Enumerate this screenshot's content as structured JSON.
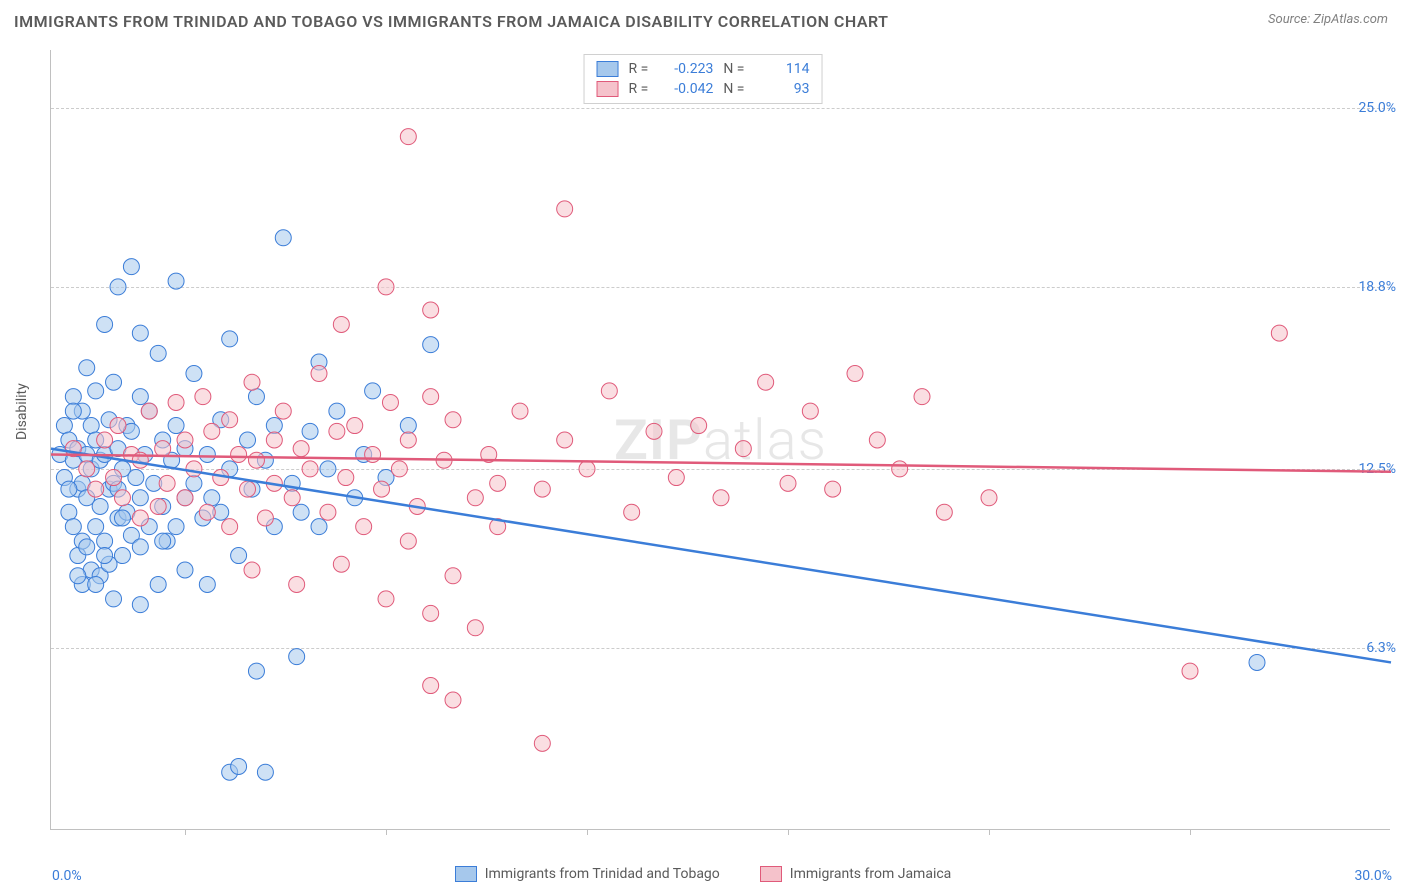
{
  "title": "IMMIGRANTS FROM TRINIDAD AND TOBAGO VS IMMIGRANTS FROM JAMAICA DISABILITY CORRELATION CHART",
  "source": "Source: ZipAtlas.com",
  "watermark_a": "ZIP",
  "watermark_b": "atlas",
  "ylabel": "Disability",
  "chart": {
    "type": "scatter",
    "xlim": [
      0,
      30
    ],
    "ylim": [
      0,
      27
    ],
    "xticks_label_left": "0.0%",
    "xticks_label_right": "30.0%",
    "xtick_positions_pct": [
      10,
      25,
      40,
      55,
      70,
      85
    ],
    "yticks": [
      {
        "v": 6.3,
        "label": "6.3%"
      },
      {
        "v": 12.5,
        "label": "12.5%"
      },
      {
        "v": 18.8,
        "label": "18.8%"
      },
      {
        "v": 25.0,
        "label": "25.0%"
      }
    ],
    "grid_color": "#cccccc",
    "background_color": "#ffffff",
    "series": [
      {
        "name": "Immigrants from Trinidad and Tobago",
        "fill": "#a6c8ec",
        "stroke": "#3b7dd8",
        "opacity": 0.55,
        "r_value": "-0.223",
        "n_value": "114",
        "line": {
          "x1": 0,
          "y1": 13.2,
          "x2": 30,
          "y2": 5.8
        },
        "points": [
          [
            0.2,
            13.0
          ],
          [
            0.3,
            12.2
          ],
          [
            0.3,
            14.0
          ],
          [
            0.4,
            11.0
          ],
          [
            0.4,
            13.5
          ],
          [
            0.5,
            10.5
          ],
          [
            0.5,
            12.8
          ],
          [
            0.5,
            15.0
          ],
          [
            0.6,
            9.5
          ],
          [
            0.6,
            11.8
          ],
          [
            0.6,
            13.2
          ],
          [
            0.7,
            8.5
          ],
          [
            0.7,
            10.0
          ],
          [
            0.7,
            12.0
          ],
          [
            0.7,
            14.5
          ],
          [
            0.8,
            11.5
          ],
          [
            0.8,
            13.0
          ],
          [
            0.8,
            16.0
          ],
          [
            0.9,
            9.0
          ],
          [
            0.9,
            12.5
          ],
          [
            0.9,
            14.0
          ],
          [
            1.0,
            10.5
          ],
          [
            1.0,
            13.5
          ],
          [
            1.0,
            15.2
          ],
          [
            1.1,
            8.8
          ],
          [
            1.1,
            11.2
          ],
          [
            1.1,
            12.8
          ],
          [
            1.2,
            10.0
          ],
          [
            1.2,
            13.0
          ],
          [
            1.2,
            17.5
          ],
          [
            1.3,
            9.2
          ],
          [
            1.3,
            11.8
          ],
          [
            1.3,
            14.2
          ],
          [
            1.4,
            12.0
          ],
          [
            1.4,
            15.5
          ],
          [
            1.5,
            10.8
          ],
          [
            1.5,
            13.2
          ],
          [
            1.5,
            18.8
          ],
          [
            1.6,
            9.5
          ],
          [
            1.6,
            12.5
          ],
          [
            1.7,
            11.0
          ],
          [
            1.7,
            14.0
          ],
          [
            1.8,
            10.2
          ],
          [
            1.8,
            13.8
          ],
          [
            1.8,
            19.5
          ],
          [
            1.9,
            12.2
          ],
          [
            2.0,
            9.8
          ],
          [
            2.0,
            11.5
          ],
          [
            2.0,
            15.0
          ],
          [
            2.1,
            13.0
          ],
          [
            2.2,
            10.5
          ],
          [
            2.2,
            14.5
          ],
          [
            2.3,
            12.0
          ],
          [
            2.4,
            16.5
          ],
          [
            2.5,
            11.2
          ],
          [
            2.5,
            13.5
          ],
          [
            2.6,
            10.0
          ],
          [
            2.7,
            12.8
          ],
          [
            2.8,
            14.0
          ],
          [
            2.8,
            19.0
          ],
          [
            3.0,
            11.5
          ],
          [
            3.0,
            13.2
          ],
          [
            3.2,
            12.0
          ],
          [
            3.2,
            15.8
          ],
          [
            3.4,
            10.8
          ],
          [
            3.5,
            13.0
          ],
          [
            3.6,
            11.5
          ],
          [
            3.8,
            14.2
          ],
          [
            4.0,
            12.5
          ],
          [
            4.0,
            17.0
          ],
          [
            4.2,
            9.5
          ],
          [
            4.4,
            13.5
          ],
          [
            4.5,
            11.8
          ],
          [
            4.6,
            15.0
          ],
          [
            4.8,
            12.8
          ],
          [
            5.0,
            10.5
          ],
          [
            5.0,
            14.0
          ],
          [
            5.2,
            20.5
          ],
          [
            5.4,
            12.0
          ],
          [
            5.6,
            11.0
          ],
          [
            5.8,
            13.8
          ],
          [
            6.0,
            16.2
          ],
          [
            6.2,
            12.5
          ],
          [
            6.4,
            14.5
          ],
          [
            6.8,
            11.5
          ],
          [
            7.0,
            13.0
          ],
          [
            7.2,
            15.2
          ],
          [
            7.5,
            12.2
          ],
          [
            8.0,
            14.0
          ],
          [
            8.5,
            16.8
          ],
          [
            4.0,
            2.0
          ],
          [
            4.2,
            2.2
          ],
          [
            4.8,
            2.0
          ],
          [
            4.6,
            5.5
          ],
          [
            2.0,
            17.2
          ],
          [
            2.4,
            8.5
          ],
          [
            3.0,
            9.0
          ],
          [
            1.4,
            8.0
          ],
          [
            1.0,
            8.5
          ],
          [
            1.2,
            9.5
          ],
          [
            0.8,
            9.8
          ],
          [
            0.6,
            8.8
          ],
          [
            2.0,
            7.8
          ],
          [
            2.8,
            10.5
          ],
          [
            1.6,
            10.8
          ],
          [
            3.5,
            8.5
          ],
          [
            0.5,
            14.5
          ],
          [
            1.5,
            11.8
          ],
          [
            0.4,
            11.8
          ],
          [
            2.5,
            10.0
          ],
          [
            3.8,
            11.0
          ],
          [
            6.0,
            10.5
          ],
          [
            5.5,
            6.0
          ],
          [
            27.0,
            5.8
          ]
        ]
      },
      {
        "name": "Immigrants from Jamaica",
        "fill": "#f5c2cb",
        "stroke": "#e05a7a",
        "opacity": 0.55,
        "r_value": "-0.042",
        "n_value": "93",
        "line": {
          "x1": 0,
          "y1": 13.0,
          "x2": 30,
          "y2": 12.4
        },
        "points": [
          [
            0.5,
            13.2
          ],
          [
            0.8,
            12.5
          ],
          [
            1.0,
            11.8
          ],
          [
            1.2,
            13.5
          ],
          [
            1.4,
            12.2
          ],
          [
            1.5,
            14.0
          ],
          [
            1.6,
            11.5
          ],
          [
            1.8,
            13.0
          ],
          [
            2.0,
            10.8
          ],
          [
            2.0,
            12.8
          ],
          [
            2.2,
            14.5
          ],
          [
            2.4,
            11.2
          ],
          [
            2.5,
            13.2
          ],
          [
            2.6,
            12.0
          ],
          [
            2.8,
            14.8
          ],
          [
            3.0,
            11.5
          ],
          [
            3.0,
            13.5
          ],
          [
            3.2,
            12.5
          ],
          [
            3.4,
            15.0
          ],
          [
            3.5,
            11.0
          ],
          [
            3.6,
            13.8
          ],
          [
            3.8,
            12.2
          ],
          [
            4.0,
            14.2
          ],
          [
            4.0,
            10.5
          ],
          [
            4.2,
            13.0
          ],
          [
            4.4,
            11.8
          ],
          [
            4.5,
            15.5
          ],
          [
            4.6,
            12.8
          ],
          [
            4.8,
            10.8
          ],
          [
            5.0,
            13.5
          ],
          [
            5.0,
            12.0
          ],
          [
            5.2,
            14.5
          ],
          [
            5.4,
            11.5
          ],
          [
            5.6,
            13.2
          ],
          [
            5.8,
            12.5
          ],
          [
            6.0,
            15.8
          ],
          [
            6.2,
            11.0
          ],
          [
            6.4,
            13.8
          ],
          [
            6.6,
            12.2
          ],
          [
            6.8,
            14.0
          ],
          [
            7.0,
            10.5
          ],
          [
            7.2,
            13.0
          ],
          [
            7.4,
            11.8
          ],
          [
            7.6,
            14.8
          ],
          [
            7.8,
            12.5
          ],
          [
            8.0,
            13.5
          ],
          [
            8.2,
            11.2
          ],
          [
            8.5,
            15.0
          ],
          [
            8.8,
            12.8
          ],
          [
            9.0,
            14.2
          ],
          [
            9.5,
            11.5
          ],
          [
            9.8,
            13.0
          ],
          [
            10.0,
            12.0
          ],
          [
            10.5,
            14.5
          ],
          [
            11.0,
            11.8
          ],
          [
            11.5,
            13.5
          ],
          [
            12.0,
            12.5
          ],
          [
            12.5,
            15.2
          ],
          [
            13.0,
            11.0
          ],
          [
            13.5,
            13.8
          ],
          [
            14.0,
            12.2
          ],
          [
            14.5,
            14.0
          ],
          [
            15.0,
            11.5
          ],
          [
            15.5,
            13.2
          ],
          [
            16.0,
            15.5
          ],
          [
            16.5,
            12.0
          ],
          [
            17.0,
            14.5
          ],
          [
            17.5,
            11.8
          ],
          [
            18.0,
            15.8
          ],
          [
            18.5,
            13.5
          ],
          [
            19.0,
            12.5
          ],
          [
            19.5,
            15.0
          ],
          [
            20.0,
            11.0
          ],
          [
            6.5,
            17.5
          ],
          [
            8.5,
            18.0
          ],
          [
            7.5,
            18.8
          ],
          [
            8.0,
            24.0
          ],
          [
            11.5,
            21.5
          ],
          [
            4.5,
            9.0
          ],
          [
            5.5,
            8.5
          ],
          [
            6.5,
            9.2
          ],
          [
            7.5,
            8.0
          ],
          [
            8.0,
            10.0
          ],
          [
            9.0,
            8.8
          ],
          [
            8.5,
            7.5
          ],
          [
            9.5,
            7.0
          ],
          [
            10.0,
            10.5
          ],
          [
            11.0,
            3.0
          ],
          [
            9.0,
            4.5
          ],
          [
            8.5,
            5.0
          ],
          [
            25.5,
            5.5
          ],
          [
            27.5,
            17.2
          ],
          [
            21.0,
            11.5
          ]
        ]
      }
    ]
  },
  "legend_labels": {
    "r": "R =",
    "n": "N ="
  }
}
